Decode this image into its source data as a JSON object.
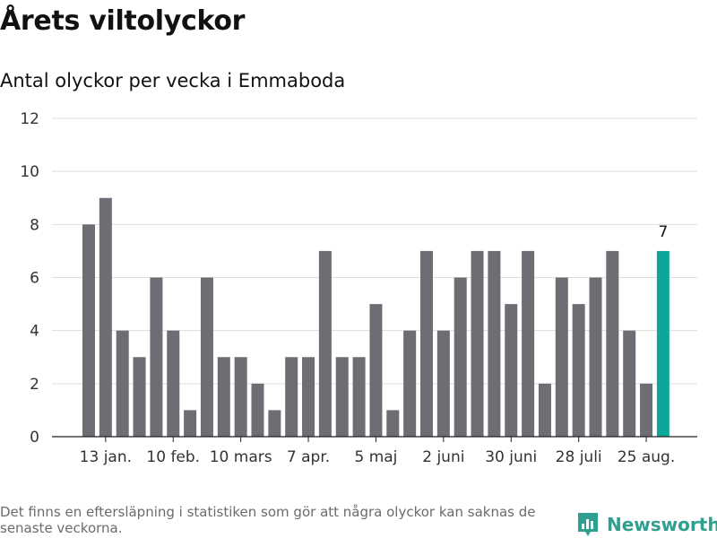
{
  "title": "Årets viltolyckor",
  "subtitle": "Antal olyckor per vecka i Emmaboda",
  "footnote": "Det finns en eftersläpning i statistiken som gör att några olyckor kan saknas de senaste veckorna.",
  "brand": "Newsworthy",
  "colors": {
    "bar": "#6e6d73",
    "highlight": "#0ca798",
    "grid": "#dddddd",
    "axis": "#222222",
    "brand": "#2f9f8f"
  },
  "chart_data": {
    "type": "bar",
    "title": "Antal olyckor per vecka i Emmaboda",
    "values": [
      8,
      9,
      4,
      3,
      6,
      4,
      1,
      6,
      3,
      3,
      2,
      1,
      3,
      3,
      7,
      3,
      3,
      5,
      1,
      4,
      7,
      4,
      6,
      7,
      7,
      5,
      7,
      2,
      6,
      5,
      6,
      7,
      4,
      2,
      7
    ],
    "highlight_index": 34,
    "highlight_label": "7",
    "ylim": [
      0,
      12
    ],
    "yticks": [
      0,
      2,
      4,
      6,
      8,
      10,
      12
    ],
    "xtick_labels": [
      {
        "label": "13 jan.",
        "index": 1
      },
      {
        "label": "10 feb.",
        "index": 5
      },
      {
        "label": "10 mars",
        "index": 9
      },
      {
        "label": "7 apr.",
        "index": 13
      },
      {
        "label": "5 maj",
        "index": 17
      },
      {
        "label": "2 juni",
        "index": 21
      },
      {
        "label": "30 juni",
        "index": 25
      },
      {
        "label": "28 juli",
        "index": 29
      },
      {
        "label": "25 aug.",
        "index": 33
      }
    ],
    "grid": true,
    "legend": "none"
  }
}
